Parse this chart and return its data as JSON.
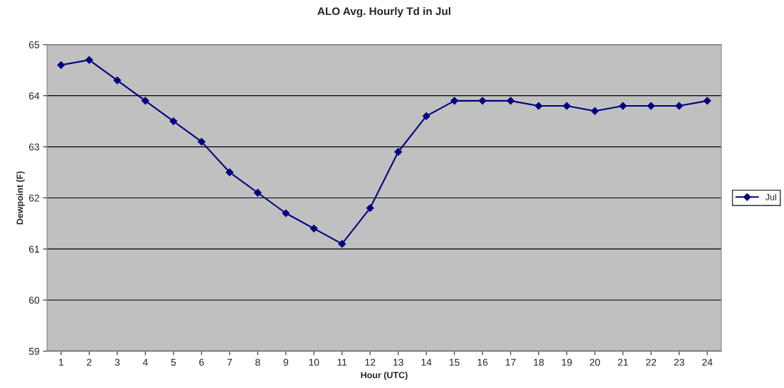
{
  "chart_data": {
    "type": "line",
    "title": "ALO Avg. Hourly Td in Jul",
    "xlabel": "Hour (UTC)",
    "ylabel": "Dewpoint (F)",
    "categories": [
      "1",
      "2",
      "3",
      "4",
      "5",
      "6",
      "7",
      "8",
      "9",
      "10",
      "11",
      "12",
      "13",
      "14",
      "15",
      "16",
      "17",
      "18",
      "19",
      "20",
      "21",
      "22",
      "23",
      "24"
    ],
    "series": [
      {
        "name": "Jul",
        "color": "#000080",
        "values": [
          64.6,
          64.7,
          64.3,
          63.9,
          63.5,
          63.1,
          62.5,
          62.1,
          61.7,
          61.4,
          61.1,
          61.8,
          62.9,
          63.6,
          63.9,
          63.9,
          63.9,
          63.8,
          63.8,
          63.7,
          63.8,
          63.8,
          63.8,
          63.9
        ]
      }
    ],
    "ylim": [
      59,
      65
    ],
    "yticks": [
      59,
      60,
      61,
      62,
      63,
      64,
      65
    ],
    "grid": "y",
    "legend": "right",
    "marker": "diamond",
    "line_style": "solid"
  }
}
